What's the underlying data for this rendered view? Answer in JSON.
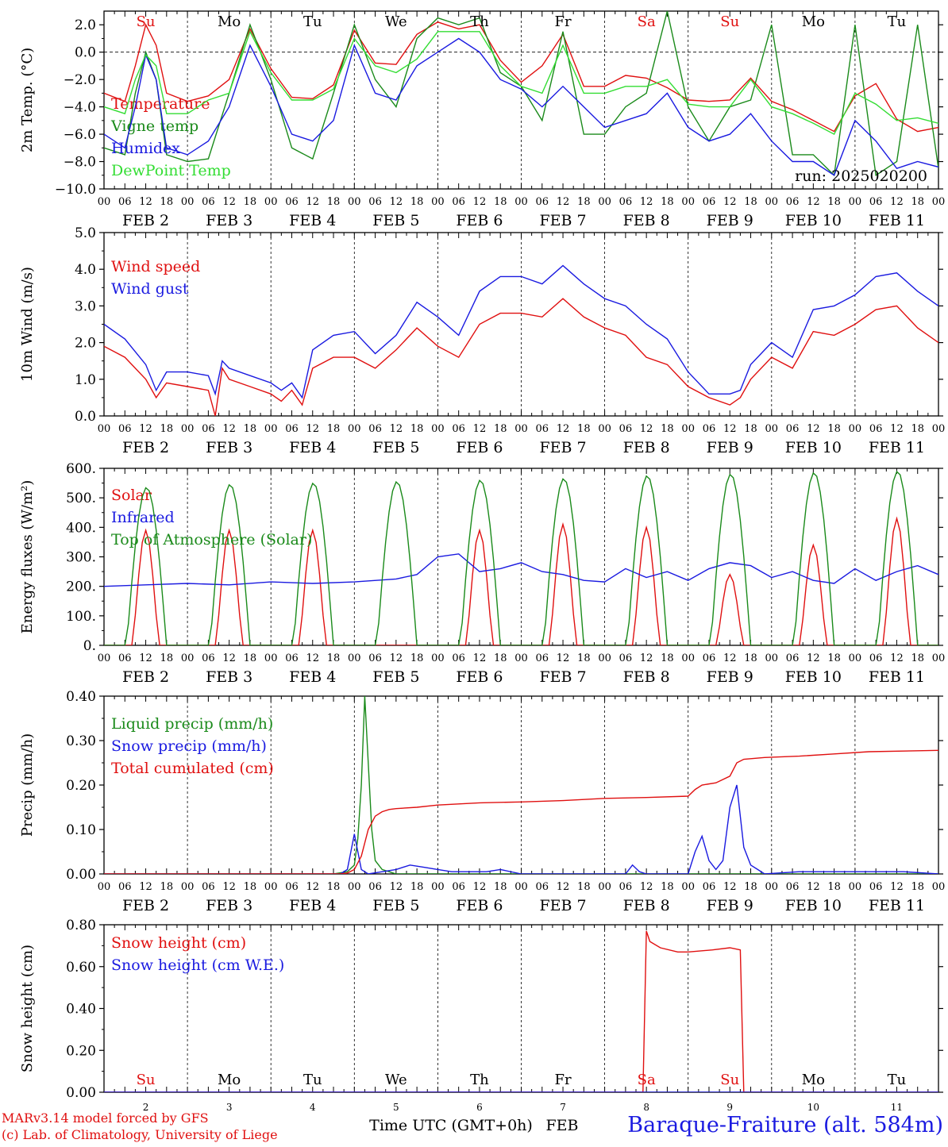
{
  "meta": {
    "run": "run: 2025020200",
    "hour_ticks": [
      "00",
      "06",
      "12",
      "18"
    ],
    "final_tick": "00",
    "date_labels": [
      "FEB  2",
      "FEB  3",
      "FEB  4",
      "FEB  5",
      "FEB  6",
      "FEB  7",
      "FEB  8",
      "FEB  9",
      "FEB 10",
      "FEB 11"
    ],
    "days": [
      {
        "abbr": "Su",
        "num": "2",
        "color": "#e01010"
      },
      {
        "abbr": "Mo",
        "num": "3",
        "color": "#000000"
      },
      {
        "abbr": "Tu",
        "num": "4",
        "color": "#000000"
      },
      {
        "abbr": "We",
        "num": "5",
        "color": "#000000"
      },
      {
        "abbr": "Th",
        "num": "6",
        "color": "#000000"
      },
      {
        "abbr": "Fr",
        "num": "7",
        "color": "#000000"
      },
      {
        "abbr": "Sa",
        "num": "8",
        "color": "#e01010"
      },
      {
        "abbr": "Su",
        "num": "9",
        "color": "#e01010"
      },
      {
        "abbr": "Mo",
        "num": "10",
        "color": "#000000"
      },
      {
        "abbr": "Tu",
        "num": "11",
        "color": "#000000"
      }
    ],
    "footer_model": "MARv3.14 model forced by GFS",
    "footer_lab": "(c) Lab. of Climatology, University of Liege",
    "time_label": "Time UTC (GMT+0h)",
    "month_label": "FEB",
    "station": "Baraque-Fraiture (alt. 584m)",
    "colors": {
      "red": "#e01010",
      "green": "#1a8a1a",
      "blue": "#1a1ae0",
      "lightgreen": "#33dd33",
      "axis": "#000000"
    }
  },
  "chart_data": [
    {
      "type": "line",
      "id": "temp",
      "ylabel": "2m Temp. (°C)",
      "ylim": [
        -10,
        3
      ],
      "yticks": [
        -10,
        -8,
        -6,
        -4,
        -2,
        0,
        2
      ],
      "ytick_labels": [
        "−10.0",
        "−8.0",
        "−6.0",
        "−4.0",
        "−2.0",
        "0.0",
        "2.0"
      ],
      "zero_line": true,
      "x_unit": "hours since FEB 2 00 UTC",
      "xlim": [
        0,
        240
      ],
      "series": [
        {
          "name": "Temperature",
          "color": "#e01010",
          "x": [
            0,
            6,
            9,
            12,
            15,
            18,
            24,
            30,
            36,
            42,
            48,
            54,
            60,
            66,
            72,
            78,
            84,
            90,
            96,
            102,
            108,
            114,
            120,
            126,
            132,
            138,
            144,
            150,
            156,
            162,
            168,
            174,
            180,
            186,
            192,
            198,
            204,
            210,
            216,
            222,
            228,
            234,
            240
          ],
          "values": [
            -3.0,
            -3.6,
            -1,
            2.0,
            0.5,
            -3.0,
            -3.6,
            -3.2,
            -2,
            1.7,
            -1.2,
            -3.3,
            -3.4,
            -2.4,
            1.6,
            -0.8,
            -0.9,
            1.3,
            2.2,
            1.7,
            2.0,
            -0.6,
            -2.2,
            -1,
            1.3,
            -2.5,
            -2.5,
            -1.7,
            -1.9,
            -2.6,
            -3.5,
            -3.6,
            -3.5,
            -1.9,
            -3.6,
            -4.2,
            -5.0,
            -5.8,
            -3.2,
            -2.3,
            -4.9,
            -5.8,
            -5.5
          ]
        },
        {
          "name": "Vigne temp",
          "color": "#1a8a1a",
          "x": [
            0,
            6,
            9,
            12,
            15,
            18,
            24,
            30,
            36,
            42,
            48,
            54,
            60,
            66,
            72,
            78,
            84,
            90,
            96,
            102,
            108,
            114,
            120,
            126,
            132,
            138,
            144,
            150,
            156,
            162,
            168,
            174,
            180,
            186,
            192,
            198,
            204,
            210,
            216,
            222,
            228,
            234,
            240
          ],
          "values": [
            -7,
            -7.5,
            -3,
            0,
            -2,
            -7.5,
            -8,
            -7.8,
            -3,
            2,
            -2,
            -7,
            -7.8,
            -3,
            2,
            -2,
            -4,
            1,
            2.5,
            2.0,
            2.5,
            -1.5,
            -2.5,
            -5,
            1.5,
            -6,
            -6,
            -4,
            -3,
            3,
            -4,
            -6.5,
            -4,
            -3.5,
            2,
            -7.5,
            -7.5,
            -9,
            2,
            -9,
            -8,
            2,
            -8.5
          ]
        },
        {
          "name": "Humidex",
          "color": "#1a1ae0",
          "x": [
            0,
            6,
            9,
            12,
            15,
            18,
            24,
            30,
            36,
            42,
            48,
            54,
            60,
            66,
            72,
            78,
            84,
            90,
            96,
            102,
            108,
            114,
            120,
            126,
            132,
            138,
            144,
            150,
            156,
            162,
            168,
            174,
            180,
            186,
            192,
            198,
            204,
            210,
            216,
            222,
            228,
            234,
            240
          ],
          "values": [
            -6,
            -7,
            -4,
            -0.2,
            -2,
            -7,
            -7.5,
            -6.5,
            -4,
            0.5,
            -2.5,
            -6,
            -6.5,
            -5,
            0.5,
            -3,
            -3.5,
            -1,
            0,
            1,
            0,
            -2,
            -2.7,
            -4,
            -2.5,
            -4,
            -5.5,
            -5,
            -4.5,
            -3,
            -5.5,
            -6.5,
            -6,
            -4.5,
            -6.5,
            -8,
            -8,
            -9,
            -5,
            -6.5,
            -8.5,
            -8,
            -8.4
          ]
        },
        {
          "name": "DewPoint Temp",
          "color": "#33dd33",
          "x": [
            0,
            6,
            9,
            12,
            15,
            18,
            24,
            30,
            36,
            42,
            48,
            54,
            60,
            66,
            72,
            78,
            84,
            90,
            96,
            102,
            108,
            114,
            120,
            126,
            132,
            138,
            144,
            150,
            156,
            162,
            168,
            174,
            180,
            186,
            192,
            198,
            204,
            210,
            216,
            222,
            228,
            234,
            240
          ],
          "values": [
            -4,
            -4.5,
            -2,
            -0.2,
            -1,
            -4.5,
            -4.5,
            -3.5,
            -3,
            1.5,
            -1.5,
            -3.5,
            -3.5,
            -2.7,
            1,
            -1,
            -1.5,
            -0.5,
            1.5,
            1.5,
            1.5,
            -1,
            -2.5,
            -3,
            0.5,
            -3,
            -3,
            -2.5,
            -2.5,
            -2,
            -3.8,
            -4,
            -4,
            -2,
            -4,
            -4.5,
            -5.2,
            -6,
            -3,
            -3.8,
            -5,
            -4.8,
            -5.2
          ]
        }
      ],
      "annotation": "run: 2025020200"
    },
    {
      "type": "line",
      "id": "wind",
      "ylabel": "10m Wind (m/s)",
      "ylim": [
        0,
        5
      ],
      "yticks": [
        0,
        1,
        2,
        3,
        4,
        5
      ],
      "ytick_labels": [
        "0.0",
        "1.0",
        "2.0",
        "3.0",
        "4.0",
        "5.0"
      ],
      "xlim": [
        0,
        240
      ],
      "series": [
        {
          "name": "Wind speed",
          "color": "#e01010",
          "x": [
            0,
            6,
            12,
            15,
            18,
            24,
            30,
            32,
            34,
            36,
            42,
            48,
            51,
            54,
            57,
            60,
            66,
            72,
            78,
            84,
            90,
            96,
            102,
            108,
            114,
            120,
            126,
            132,
            138,
            144,
            150,
            156,
            162,
            168,
            174,
            180,
            183,
            186,
            192,
            198,
            204,
            210,
            216,
            222,
            228,
            234,
            240
          ],
          "values": [
            1.9,
            1.6,
            1.0,
            0.5,
            0.9,
            0.8,
            0.7,
            0.0,
            1.3,
            1.0,
            0.8,
            0.6,
            0.4,
            0.7,
            0.3,
            1.3,
            1.6,
            1.6,
            1.3,
            1.8,
            2.4,
            1.9,
            1.6,
            2.5,
            2.8,
            2.8,
            2.7,
            3.2,
            2.7,
            2.4,
            2.2,
            1.6,
            1.4,
            0.8,
            0.5,
            0.3,
            0.5,
            1.0,
            1.6,
            1.3,
            2.3,
            2.2,
            2.5,
            2.9,
            3.0,
            2.4,
            2.0
          ]
        },
        {
          "name": "Wind gust",
          "color": "#1a1ae0",
          "x": [
            0,
            6,
            12,
            15,
            18,
            24,
            30,
            32,
            34,
            36,
            42,
            48,
            51,
            54,
            57,
            60,
            66,
            72,
            78,
            84,
            90,
            96,
            102,
            108,
            114,
            120,
            126,
            132,
            138,
            144,
            150,
            156,
            162,
            168,
            174,
            180,
            183,
            186,
            192,
            198,
            204,
            210,
            216,
            222,
            228,
            234,
            240
          ],
          "values": [
            2.5,
            2.1,
            1.4,
            0.7,
            1.2,
            1.2,
            1.1,
            0.6,
            1.5,
            1.3,
            1.1,
            0.9,
            0.7,
            0.9,
            0.5,
            1.8,
            2.2,
            2.3,
            1.7,
            2.2,
            3.1,
            2.7,
            2.2,
            3.4,
            3.8,
            3.8,
            3.6,
            4.1,
            3.6,
            3.2,
            3.0,
            2.5,
            2.1,
            1.2,
            0.6,
            0.6,
            0.7,
            1.4,
            2.0,
            1.6,
            2.9,
            3.0,
            3.3,
            3.8,
            3.9,
            3.4,
            3.0
          ]
        }
      ]
    },
    {
      "type": "line",
      "id": "energy",
      "ylabel": "Energy fluxes (W/m²)",
      "ylim": [
        0,
        600
      ],
      "yticks": [
        0,
        100,
        200,
        300,
        400,
        500,
        600
      ],
      "ytick_labels": [
        "0.",
        "100.",
        "200.",
        "300.",
        "400.",
        "500.",
        "600."
      ],
      "xlim": [
        0,
        240
      ],
      "series": [
        {
          "name": "Solar",
          "color": "#e01010",
          "peaks": [
            390,
            390,
            390,
            0,
            390,
            410,
            400,
            240,
            340,
            430,
            250
          ]
        },
        {
          "name": "Infrared",
          "color": "#1a1ae0",
          "x": [
            0,
            12,
            24,
            36,
            48,
            60,
            72,
            84,
            90,
            96,
            102,
            108,
            114,
            120,
            126,
            132,
            138,
            144,
            150,
            156,
            162,
            168,
            174,
            180,
            186,
            192,
            198,
            204,
            210,
            216,
            222,
            228,
            234,
            240
          ],
          "values": [
            200,
            205,
            210,
            205,
            215,
            210,
            215,
            225,
            240,
            300,
            310,
            250,
            260,
            280,
            250,
            240,
            220,
            215,
            260,
            230,
            250,
            220,
            260,
            280,
            270,
            230,
            250,
            220,
            210,
            260,
            220,
            250,
            270,
            240
          ]
        },
        {
          "name": "Top of Atmosphere (Solar)",
          "color": "#1a8a1a",
          "peaks": [
            535,
            545,
            550,
            555,
            560,
            565,
            575,
            580,
            585,
            590,
            600
          ]
        }
      ]
    },
    {
      "type": "line",
      "id": "precip",
      "ylabel": "Precip (mm/h)",
      "ylim": [
        0,
        0.4
      ],
      "yticks": [
        0,
        0.1,
        0.2,
        0.3,
        0.4
      ],
      "ytick_labels": [
        "0.00",
        "0.10",
        "0.20",
        "0.30",
        "0.40"
      ],
      "xlim": [
        0,
        240
      ],
      "series": [
        {
          "name": "Liquid precip (mm/h)",
          "color": "#1a8a1a",
          "x": [
            0,
            66,
            70,
            72,
            73,
            74,
            75,
            76,
            77,
            78,
            80,
            82,
            84,
            240
          ],
          "values": [
            0,
            0,
            0.005,
            0.02,
            0.08,
            0.2,
            0.4,
            0.25,
            0.1,
            0.03,
            0.01,
            0.005,
            0,
            0
          ]
        },
        {
          "name": "Snow precip (mm/h)",
          "color": "#1a1ae0",
          "x": [
            0,
            68,
            70,
            71,
            72,
            73,
            74,
            75,
            76,
            80,
            84,
            88,
            92,
            96,
            100,
            110,
            114,
            120,
            130,
            150,
            152,
            154,
            156,
            160,
            168,
            170,
            172,
            174,
            176,
            178,
            180,
            182,
            184,
            186,
            188,
            190,
            200,
            210,
            230,
            240
          ],
          "values": [
            0,
            0,
            0.01,
            0.05,
            0.09,
            0.05,
            0.01,
            0.005,
            0,
            0.005,
            0.01,
            0.02,
            0.015,
            0.01,
            0.005,
            0.005,
            0.01,
            0,
            0,
            0,
            0.02,
            0.005,
            0,
            0,
            0,
            0.05,
            0.085,
            0.03,
            0.01,
            0.03,
            0.15,
            0.2,
            0.06,
            0.02,
            0.01,
            0,
            0.005,
            0.005,
            0.005,
            0
          ]
        },
        {
          "name": "Total cumulated (cm)",
          "color": "#e01010",
          "x": [
            0,
            68,
            70,
            72,
            74,
            76,
            78,
            80,
            82,
            84,
            90,
            96,
            108,
            120,
            132,
            144,
            156,
            168,
            170,
            172,
            176,
            180,
            182,
            184,
            190,
            200,
            210,
            220,
            240
          ],
          "values": [
            0,
            0,
            0.002,
            0.01,
            0.04,
            0.1,
            0.13,
            0.14,
            0.145,
            0.147,
            0.15,
            0.155,
            0.16,
            0.162,
            0.165,
            0.17,
            0.172,
            0.175,
            0.19,
            0.2,
            0.205,
            0.22,
            0.25,
            0.258,
            0.262,
            0.265,
            0.27,
            0.275,
            0.278
          ]
        }
      ]
    },
    {
      "type": "line",
      "id": "snow",
      "ylabel": "Snow height (cm)",
      "ylim": [
        0,
        0.8
      ],
      "yticks": [
        0,
        0.2,
        0.4,
        0.6,
        0.8
      ],
      "ytick_labels": [
        "0.00",
        "0.20",
        "0.40",
        "0.60",
        "0.80"
      ],
      "xlim": [
        0,
        240
      ],
      "series": [
        {
          "name": "Snow height (cm)",
          "color": "#e01010",
          "x": [
            0,
            155,
            156,
            157,
            160,
            165,
            168,
            175,
            180,
            183,
            184,
            240
          ],
          "values": [
            0,
            0,
            0.77,
            0.72,
            0.69,
            0.67,
            0.67,
            0.68,
            0.69,
            0.68,
            0,
            0
          ]
        },
        {
          "name": "Snow height (cm W.E.)",
          "color": "#1a1ae0",
          "x": [
            0,
            240
          ],
          "values": [
            0,
            0
          ]
        }
      ]
    }
  ]
}
